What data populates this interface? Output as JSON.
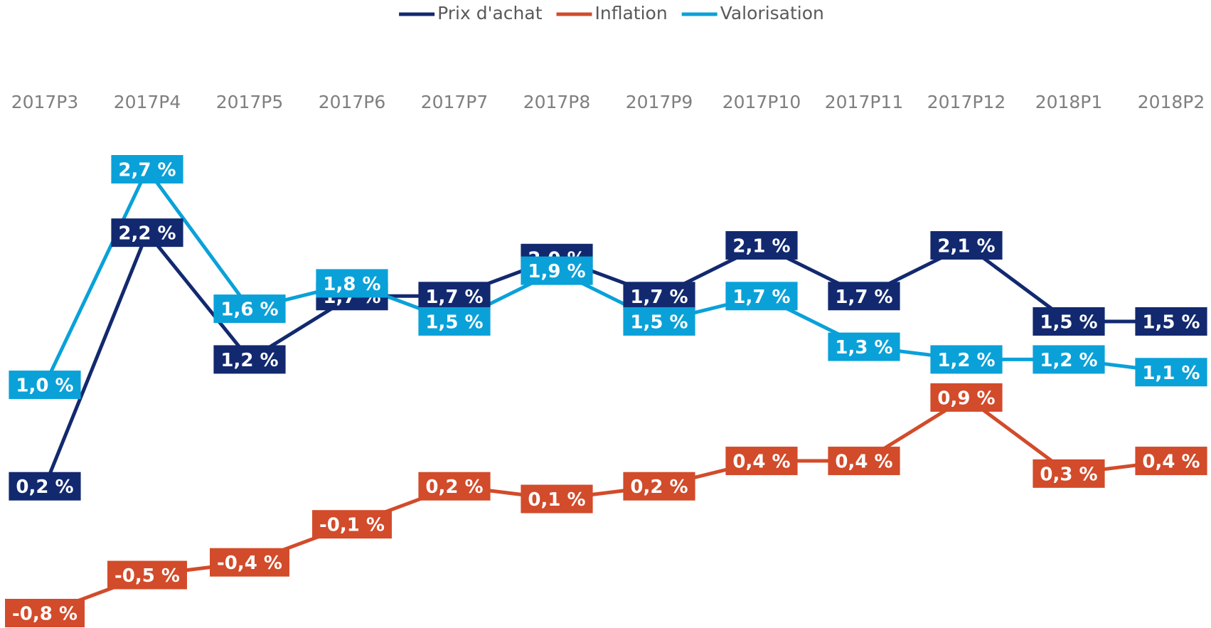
{
  "chart_data": {
    "type": "line",
    "categories": [
      "2017P3",
      "2017P4",
      "2017P5",
      "2017P6",
      "2017P7",
      "2017P8",
      "2017P9",
      "2017P10",
      "2017P11",
      "2017P12",
      "2018P1",
      "2018P2"
    ],
    "series": [
      {
        "name": "Prix d'achat",
        "color": "#12296f",
        "values": [
          0.2,
          2.2,
          1.2,
          1.7,
          1.7,
          2.0,
          1.7,
          2.1,
          1.7,
          2.1,
          1.5,
          1.5
        ],
        "value_labels": [
          "0,2 %",
          "2,2 %",
          "1,2 %",
          "1,7 %",
          "1,7 %",
          "2,0 %",
          "1,7 %",
          "2,1 %",
          "1,7 %",
          "2,1 %",
          "1,5 %",
          "1,5 %"
        ]
      },
      {
        "name": "Inflation",
        "color": "#d24b2a",
        "values": [
          -0.8,
          -0.5,
          -0.4,
          -0.1,
          0.2,
          0.1,
          0.2,
          0.4,
          0.4,
          0.9,
          0.3,
          0.4
        ],
        "value_labels": [
          "-0,8 %",
          "-0,5 %",
          "-0,4 %",
          "-0,1 %",
          "0,2 %",
          "0,1 %",
          "0,2 %",
          "0,4 %",
          "0,4 %",
          "0,9 %",
          "0,3 %",
          "0,4 %"
        ]
      },
      {
        "name": "Valorisation",
        "color": "#0aa1d9",
        "values": [
          1.0,
          2.7,
          1.6,
          1.8,
          1.5,
          1.9,
          1.5,
          1.7,
          1.3,
          1.2,
          1.2,
          1.1
        ],
        "value_labels": [
          "1,0 %",
          "2,7 %",
          "1,6 %",
          "1,8 %",
          "1,5 %",
          "1,9 %",
          "1,5 %",
          "1,7 %",
          "1,3 %",
          "1,2 %",
          "1,2 %",
          "1,1 %"
        ]
      }
    ],
    "legend": "top"
  }
}
